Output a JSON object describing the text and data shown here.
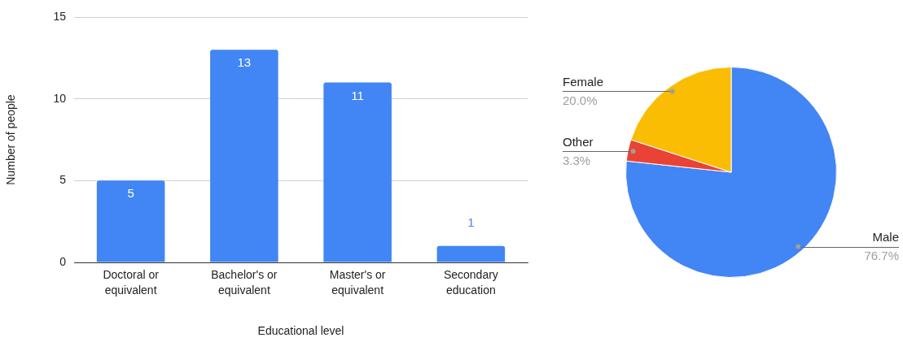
{
  "chart_data": [
    {
      "type": "bar",
      "xlabel": "Educational level",
      "ylabel": "Number of people",
      "categories": [
        "Doctoral or equivalent",
        "Bachelor's or equivalent",
        "Master's or equivalent",
        "Secondary education"
      ],
      "values": [
        5,
        13,
        11,
        1
      ],
      "color": "#4285f4",
      "ylim": [
        0,
        15
      ],
      "yticks": [
        0,
        5,
        10,
        15
      ],
      "grid": "y",
      "data_labels": true,
      "legend": false
    },
    {
      "type": "pie",
      "categories": [
        "Male",
        "Other",
        "Female"
      ],
      "values": [
        76.7,
        3.3,
        20.0
      ],
      "colors": [
        "#4285f4",
        "#ea4335",
        "#fbbc04"
      ],
      "value_labels": [
        "76.7%",
        "3.3%",
        "20.0%"
      ],
      "legend": false
    }
  ]
}
